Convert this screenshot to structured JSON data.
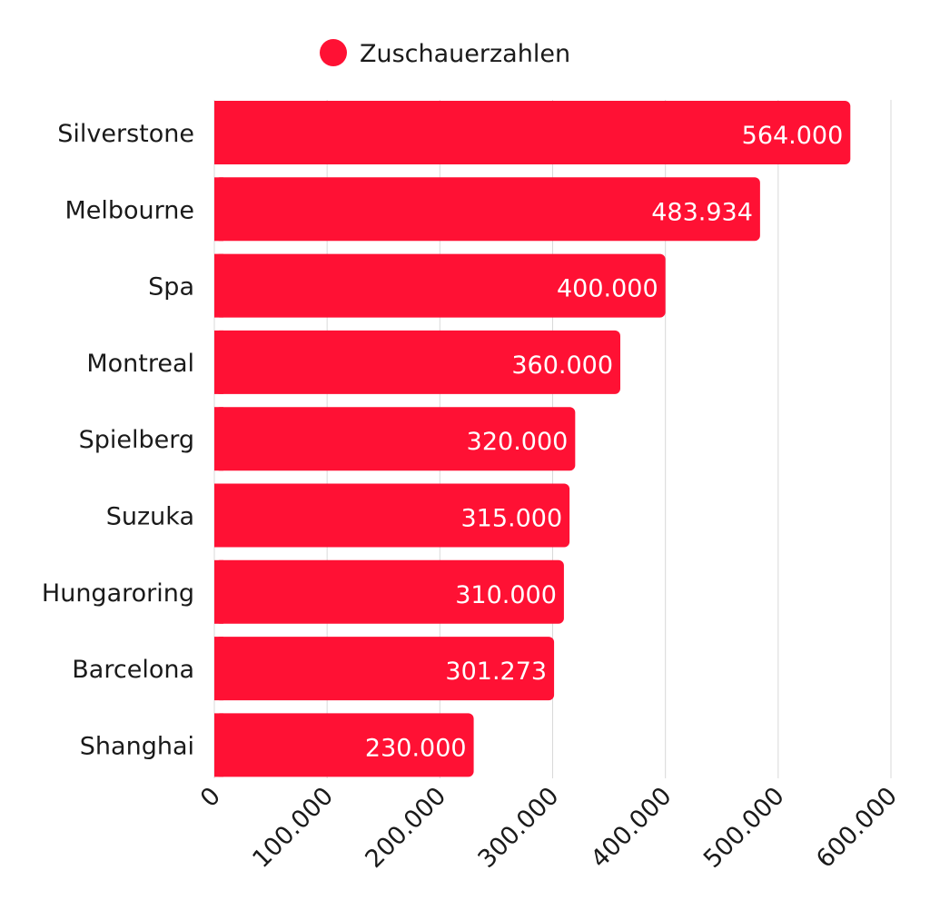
{
  "chart_data": {
    "type": "bar",
    "orientation": "horizontal",
    "categories": [
      "Silverstone",
      "Melbourne",
      "Spa",
      "Montreal",
      "Spielberg",
      "Suzuka",
      "Hungaroring",
      "Barcelona",
      "Shanghai"
    ],
    "series": [
      {
        "name": "Zuschauerzahlen",
        "values": [
          564000,
          483934,
          400000,
          360000,
          320000,
          315000,
          310000,
          301273,
          230000
        ],
        "labels": [
          "564.000",
          "483.934",
          "400.000",
          "360.000",
          "320.000",
          "315.000",
          "310.000",
          "301.273",
          "230.000"
        ]
      }
    ],
    "x_ticks": [
      0,
      100000,
      200000,
      300000,
      400000,
      500000,
      600000
    ],
    "x_tick_labels": [
      "0",
      "100.000",
      "200.000",
      "300.000",
      "400.000",
      "500.000",
      "600.000"
    ],
    "xlim": [
      0,
      600000
    ],
    "grid": true,
    "legend_position": "top-center",
    "bar_color": "#ff1134"
  }
}
